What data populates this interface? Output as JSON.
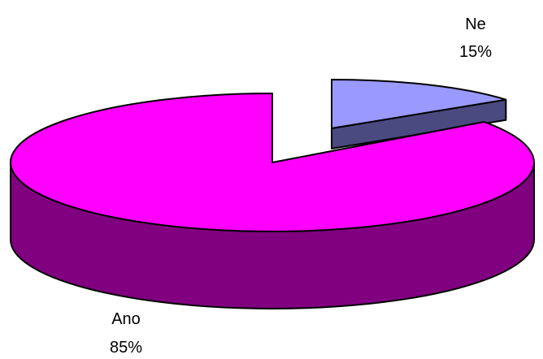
{
  "chart_data": {
    "type": "pie",
    "three_d": true,
    "title": "",
    "legend": "none",
    "slices": [
      {
        "label": "Ano",
        "value": 85,
        "percent_label": "85%",
        "top_color": "#ff00ff",
        "side_color": "#800080"
      },
      {
        "label": "Ne",
        "value": 15,
        "percent_label": "15%",
        "top_color": "#9999ff",
        "side_color": "#4a4a80"
      }
    ]
  }
}
